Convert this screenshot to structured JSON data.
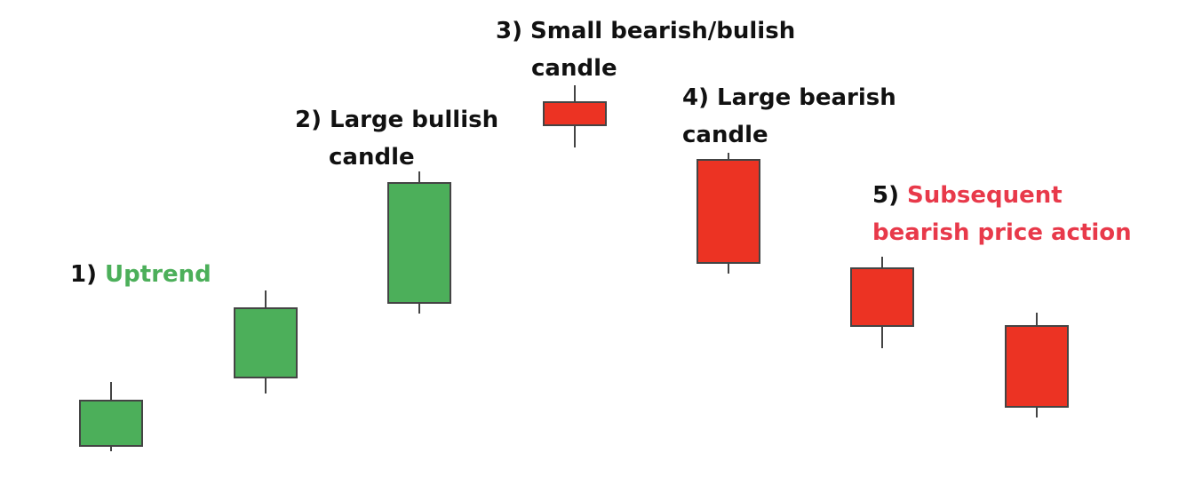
{
  "colors": {
    "bullish_fill": "#4caf5a",
    "bearish_fill": "#ec3323",
    "wick": "#444444",
    "label_text": "#111111",
    "uptrend_text": "#4caf5a",
    "bearish_text": "#e8394a"
  },
  "labels": {
    "uptrend": {
      "number": "1)",
      "text": "Uptrend"
    },
    "large_bullish": {
      "line1": "2) Large bullish",
      "line2": "candle"
    },
    "small_candle": {
      "line1": "3) Small bearish/bulish",
      "line2": "candle"
    },
    "large_bearish": {
      "line1": "4) Large bearish",
      "line2": "candle"
    },
    "subsequent": {
      "number": "5)",
      "line1": "Subsequent",
      "line2": "bearish price action"
    }
  },
  "chart_data": {
    "type": "candlestick",
    "candles": [
      {
        "type": "bullish"
      },
      {
        "type": "bullish"
      },
      {
        "type": "bullish"
      },
      {
        "type": "bearish"
      },
      {
        "type": "bearish"
      },
      {
        "type": "bearish"
      },
      {
        "type": "bearish"
      }
    ]
  }
}
